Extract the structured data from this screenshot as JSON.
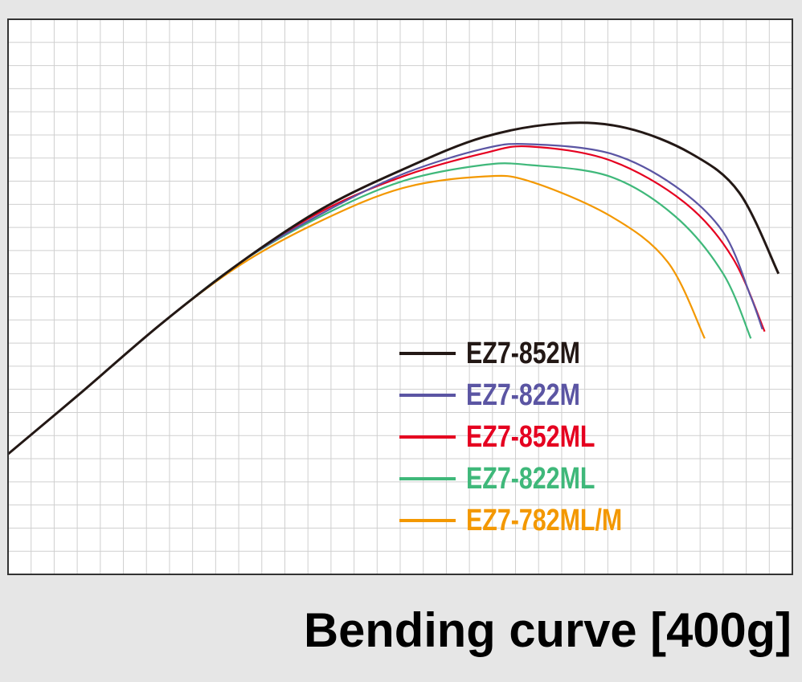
{
  "chart_data": {
    "type": "line",
    "title": "Bending curve [400g]",
    "xlim": [
      0,
      34
    ],
    "ylim": [
      0,
      24
    ],
    "grid": true,
    "legend": "lower right",
    "series": [
      {
        "name": "EZ7-852M",
        "color": "#231815",
        "x": [
          0,
          3.1,
          6.6,
          10.1,
          13.6,
          17.1,
          20.6,
          24.0,
          26.8,
          29.6,
          31.7,
          33.4
        ],
        "values": [
          5.2,
          7.8,
          10.8,
          13.5,
          15.8,
          17.5,
          18.9,
          19.5,
          19.3,
          18.2,
          16.5,
          13.0
        ]
      },
      {
        "name": "EZ7-822M",
        "color": "#5b55a3",
        "x": [
          0,
          3.1,
          6.6,
          10.1,
          13.6,
          17.1,
          20.6,
          22.6,
          26.1,
          28.9,
          31.0,
          32.2,
          32.7
        ],
        "values": [
          5.2,
          7.8,
          10.8,
          13.5,
          15.6,
          17.3,
          18.4,
          18.6,
          18.2,
          16.8,
          14.8,
          12.0,
          10.6
        ]
      },
      {
        "name": "EZ7-852ML",
        "color": "#e50020",
        "x": [
          0,
          3.1,
          6.6,
          10.1,
          13.6,
          17.1,
          20.6,
          22.6,
          26.1,
          29.3,
          31.4,
          32.8
        ],
        "values": [
          5.2,
          7.8,
          10.8,
          13.5,
          15.7,
          17.2,
          18.2,
          18.5,
          17.9,
          16.1,
          13.7,
          10.5
        ]
      },
      {
        "name": "EZ7-822ML",
        "color": "#3fb87a",
        "x": [
          0,
          3.1,
          6.6,
          10.1,
          13.6,
          17.1,
          20.6,
          22.6,
          26.1,
          28.9,
          31.0,
          32.2
        ],
        "values": [
          5.2,
          7.8,
          10.8,
          13.5,
          15.5,
          17.0,
          17.7,
          17.7,
          17.2,
          15.5,
          13.0,
          10.2
        ]
      },
      {
        "name": "EZ7-782ML/M",
        "color": "#f39800",
        "x": [
          0,
          3.1,
          6.6,
          10.1,
          13.6,
          17.1,
          20.6,
          22.6,
          26.1,
          28.6,
          30.2
        ],
        "values": [
          5.2,
          7.8,
          10.8,
          13.4,
          15.3,
          16.7,
          17.2,
          17.0,
          15.5,
          13.5,
          10.2
        ]
      }
    ]
  }
}
